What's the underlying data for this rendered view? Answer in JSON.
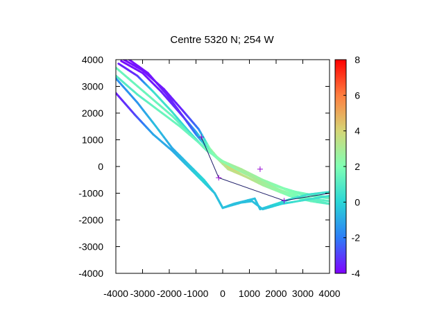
{
  "chart_data": {
    "type": "scatter",
    "title": "Centre 5320 N; 254  W",
    "xlim": [
      -4000,
      4000
    ],
    "ylim": [
      -4000,
      4000
    ],
    "x_ticks": [
      "-4000",
      "-3000",
      "-2000",
      "-1000",
      "0",
      "1000",
      "2000",
      "3000",
      "4000"
    ],
    "y_ticks": [
      "4000",
      "3000",
      "2000",
      "1000",
      "0",
      "-1000",
      "-2000",
      "-3000",
      "-4000"
    ],
    "colorbar": {
      "range": [
        -4,
        8
      ],
      "ticks": [
        "8",
        "6",
        "4",
        "2",
        "0",
        "-2",
        "-4"
      ],
      "palette": "rainbow",
      "colors": [
        "#8000ff",
        "#2d7df7",
        "#2ad6d6",
        "#80ffb4",
        "#d5d676",
        "#ff7e40",
        "#ff0000"
      ]
    },
    "tracks": [
      {
        "points": [
          [
            -3700,
            4000
          ],
          [
            -3000,
            3600
          ],
          [
            -2200,
            2900
          ],
          [
            -1500,
            2100
          ],
          [
            -900,
            1400
          ],
          [
            -500,
            700
          ],
          [
            0,
            100
          ],
          [
            700,
            -300
          ],
          [
            1500,
            -700
          ],
          [
            2500,
            -1100
          ],
          [
            3300,
            -1300
          ],
          [
            4000,
            -1400
          ]
        ],
        "values": [
          -3.8,
          -3.7,
          -3.6,
          -3.4,
          -2,
          2,
          4,
          4,
          3,
          2,
          1.5,
          1
        ]
      },
      {
        "points": [
          [
            -3800,
            3950
          ],
          [
            -3000,
            3500
          ],
          [
            -2300,
            2800
          ],
          [
            -1600,
            2000
          ],
          [
            -1000,
            1300
          ],
          [
            -400,
            500
          ],
          [
            200,
            -100
          ],
          [
            900,
            -400
          ],
          [
            1800,
            -800
          ],
          [
            2700,
            -1100
          ],
          [
            4000,
            -1300
          ]
        ],
        "values": [
          -3.8,
          -3.7,
          -3.5,
          -3.3,
          -1,
          2.5,
          3.5,
          3.5,
          2.5,
          2,
          1
        ]
      },
      {
        "points": [
          [
            -3900,
            3850
          ],
          [
            -3200,
            3400
          ],
          [
            -2600,
            2800
          ],
          [
            -1900,
            2050
          ],
          [
            -1300,
            1350
          ],
          [
            -700,
            700
          ],
          [
            0,
            200
          ],
          [
            800,
            -200
          ],
          [
            1700,
            -600
          ],
          [
            2700,
            -1000
          ],
          [
            4000,
            -1200
          ]
        ],
        "values": [
          -3.5,
          -3.3,
          0.5,
          0.5,
          0,
          0.5,
          1.5,
          2.5,
          2.5,
          2,
          1.5
        ]
      },
      {
        "points": [
          [
            -3500,
            4000
          ],
          [
            -2800,
            3500
          ],
          [
            -2100,
            2700
          ],
          [
            -1500,
            1900
          ],
          [
            -1000,
            1200
          ],
          [
            -500,
            600
          ],
          [
            100,
            100
          ],
          [
            900,
            -300
          ],
          [
            1900,
            -700
          ],
          [
            2900,
            -1000
          ],
          [
            4000,
            -1150
          ]
        ],
        "values": [
          -3.8,
          -3.7,
          -3.5,
          -3.3,
          -2,
          1.5,
          3.5,
          3.5,
          2,
          1.5,
          1
        ]
      },
      {
        "points": [
          [
            -4000,
            3700
          ],
          [
            -3300,
            3100
          ],
          [
            -2600,
            2500
          ],
          [
            -1900,
            1900
          ],
          [
            -1200,
            1200
          ],
          [
            -600,
            600
          ],
          [
            0,
            200
          ],
          [
            700,
            -100
          ],
          [
            1500,
            -500
          ],
          [
            2500,
            -900
          ],
          [
            3500,
            -1100
          ],
          [
            4000,
            -1150
          ]
        ],
        "values": [
          1.5,
          1.5,
          1.5,
          1.5,
          1,
          1.5,
          2.5,
          3,
          2.5,
          2,
          1.5,
          1.5
        ]
      },
      {
        "points": [
          [
            -4000,
            3400
          ],
          [
            -3200,
            2700
          ],
          [
            -2400,
            2100
          ],
          [
            -1600,
            1500
          ],
          [
            -900,
            900
          ],
          [
            -200,
            300
          ],
          [
            500,
            -100
          ],
          [
            1300,
            -500
          ],
          [
            2200,
            -900
          ],
          [
            3100,
            -1200
          ],
          [
            4000,
            -1400
          ]
        ],
        "values": [
          1,
          1,
          1.5,
          1.5,
          1.5,
          2,
          2.5,
          3,
          2.5,
          1.5,
          1
        ]
      },
      {
        "points": [
          [
            -4000,
            3300
          ],
          [
            -3200,
            2400
          ],
          [
            -2500,
            1500
          ],
          [
            -1900,
            700
          ],
          [
            -1300,
            100
          ],
          [
            -700,
            -500
          ],
          [
            -300,
            -1000
          ],
          [
            0,
            -1550
          ],
          [
            400,
            -1400
          ],
          [
            800,
            -1300
          ],
          [
            1200,
            -1200
          ],
          [
            1400,
            -1600
          ],
          [
            2000,
            -1400
          ],
          [
            2600,
            -1200
          ],
          [
            3200,
            -1050
          ],
          [
            4000,
            -950
          ]
        ],
        "values": [
          -1.5,
          -1.5,
          -0.5,
          -1,
          -0.5,
          0,
          -0.5,
          -0.5,
          -0.5,
          -0.5,
          -0.5,
          -0.5,
          0,
          0.5,
          0.5,
          0.5
        ]
      },
      {
        "points": [
          [
            -4000,
            2750
          ],
          [
            -3300,
            1950
          ],
          [
            -2600,
            1200
          ],
          [
            -1900,
            600
          ],
          [
            -1300,
            0
          ],
          [
            -800,
            -500
          ],
          [
            -300,
            -1000
          ],
          [
            0,
            -1550
          ],
          [
            700,
            -1350
          ],
          [
            1100,
            -1300
          ],
          [
            1500,
            -1600
          ],
          [
            2200,
            -1400
          ],
          [
            2800,
            -1300
          ],
          [
            3400,
            -1200
          ],
          [
            4000,
            -1100
          ]
        ],
        "values": [
          -3.5,
          -3,
          -1,
          -1,
          -0.5,
          0,
          -0.5,
          -0.5,
          -0.5,
          -0.5,
          -0.5,
          0,
          0.5,
          0.5,
          0.5
        ]
      }
    ],
    "markers": [
      [
        -800,
        1100
      ],
      [
        -150,
        -420
      ],
      [
        1400,
        -100
      ],
      [
        2300,
        -1280
      ]
    ],
    "path": [
      [
        -800,
        1100
      ],
      [
        -150,
        -420
      ],
      [
        2300,
        -1280
      ],
      [
        4000,
        -1000
      ]
    ]
  }
}
